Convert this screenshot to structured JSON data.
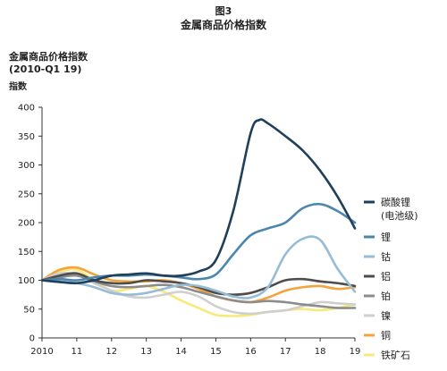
{
  "figure": {
    "number": "图3",
    "title": "金属商品价格指数"
  },
  "chart_data": {
    "type": "line",
    "title": "金属商品价格指数",
    "subtitle": "(2010-Q1 19)",
    "ylabel": "金属商品价格指数",
    "yunit": "指数",
    "xlabel": "",
    "ylim": [
      0,
      400
    ],
    "yticks": [
      "0",
      "50",
      "100",
      "150",
      "200",
      "250",
      "300",
      "350",
      "400"
    ],
    "xlim": [
      2010,
      2019
    ],
    "xticks": [
      "2010",
      "11",
      "12",
      "13",
      "14",
      "15",
      "16",
      "17",
      "18",
      "19"
    ],
    "grid": false,
    "legend_position": "right",
    "series": [
      {
        "name": "碳酸锂",
        "name_line2": "(电池级)",
        "color": "#1f3f5a",
        "x": [
          2010,
          2010.5,
          2011,
          2011.5,
          2012,
          2012.5,
          2013,
          2013.5,
          2014,
          2014.5,
          2015,
          2015.5,
          2016,
          2016.25,
          2016.5,
          2017,
          2017.5,
          2018,
          2018.5,
          2019
        ],
        "y": [
          100,
          97,
          95,
          100,
          108,
          110,
          112,
          108,
          108,
          115,
          135,
          220,
          355,
          378,
          372,
          350,
          325,
          290,
          245,
          190
        ]
      },
      {
        "name": "锂",
        "color": "#4a86ad",
        "x": [
          2010,
          2010.5,
          2011,
          2011.5,
          2012,
          2012.5,
          2013,
          2013.5,
          2014,
          2014.5,
          2015,
          2015.5,
          2016,
          2016.5,
          2017,
          2017.5,
          2018,
          2018.5,
          2019
        ],
        "y": [
          100,
          102,
          100,
          105,
          108,
          108,
          110,
          108,
          105,
          102,
          110,
          145,
          178,
          190,
          200,
          225,
          232,
          220,
          200
        ]
      },
      {
        "name": "钴",
        "color": "#98bcd6",
        "x": [
          2010,
          2010.5,
          2011,
          2011.5,
          2012,
          2012.5,
          2013,
          2013.5,
          2014,
          2014.5,
          2015,
          2015.5,
          2016,
          2016.5,
          2017,
          2017.5,
          2018,
          2018.5,
          2019
        ],
        "y": [
          100,
          98,
          95,
          88,
          78,
          75,
          78,
          85,
          92,
          90,
          82,
          72,
          70,
          88,
          145,
          172,
          170,
          120,
          80
        ]
      },
      {
        "name": "铝",
        "color": "#4d4d4d",
        "x": [
          2010,
          2010.5,
          2011,
          2011.5,
          2012,
          2012.5,
          2013,
          2013.5,
          2014,
          2014.5,
          2015,
          2015.5,
          2016,
          2016.5,
          2017,
          2017.5,
          2018,
          2018.5,
          2019
        ],
        "y": [
          100,
          108,
          112,
          100,
          95,
          95,
          100,
          98,
          95,
          88,
          78,
          75,
          78,
          88,
          100,
          102,
          98,
          95,
          90
        ]
      },
      {
        "name": "铂",
        "color": "#8c8c8c",
        "x": [
          2010,
          2010.5,
          2011,
          2011.5,
          2012,
          2012.5,
          2013,
          2013.5,
          2014,
          2014.5,
          2015,
          2015.5,
          2016,
          2016.5,
          2017,
          2017.5,
          2018,
          2018.5,
          2019
        ],
        "y": [
          100,
          105,
          108,
          98,
          90,
          88,
          90,
          92,
          88,
          80,
          72,
          65,
          62,
          64,
          62,
          58,
          55,
          52,
          52
        ]
      },
      {
        "name": "镍",
        "color": "#cfcfcf",
        "x": [
          2010,
          2010.5,
          2011,
          2011.5,
          2012,
          2012.5,
          2013,
          2013.5,
          2014,
          2014.5,
          2015,
          2015.5,
          2016,
          2016.5,
          2017,
          2017.5,
          2018,
          2018.5,
          2019
        ],
        "y": [
          100,
          112,
          110,
          95,
          82,
          72,
          70,
          75,
          80,
          72,
          55,
          45,
          42,
          45,
          48,
          55,
          62,
          60,
          58
        ]
      },
      {
        "name": "铜",
        "color": "#f4a43c",
        "x": [
          2010,
          2010.5,
          2011,
          2011.5,
          2012,
          2012.5,
          2013,
          2013.5,
          2014,
          2014.5,
          2015,
          2015.5,
          2016,
          2016.5,
          2017,
          2017.5,
          2018,
          2018.5,
          2019
        ],
        "y": [
          100,
          118,
          122,
          110,
          100,
          98,
          98,
          100,
          95,
          85,
          72,
          65,
          62,
          70,
          82,
          88,
          90,
          85,
          88
        ]
      },
      {
        "name": "铁矿石",
        "color": "#f7ea7a",
        "x": [
          2010,
          2010.5,
          2011,
          2011.5,
          2012,
          2012.5,
          2013,
          2013.5,
          2014,
          2014.5,
          2015,
          2015.5,
          2016,
          2016.5,
          2017,
          2017.5,
          2018,
          2018.5,
          2019
        ],
        "y": [
          100,
          115,
          118,
          100,
          82,
          85,
          90,
          80,
          65,
          52,
          40,
          38,
          40,
          45,
          48,
          50,
          48,
          52,
          58
        ]
      }
    ]
  }
}
